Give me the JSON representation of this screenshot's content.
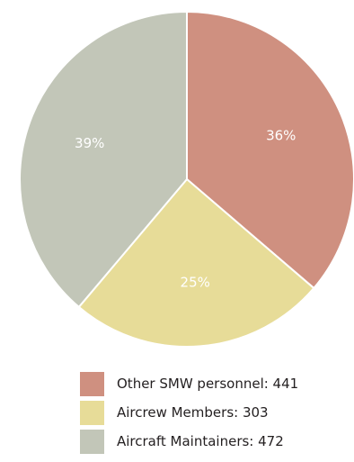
{
  "chart_data": {
    "type": "pie",
    "title": "",
    "slices": [
      {
        "label": "Other SMW personnel",
        "value": 441,
        "percent_label": "36%",
        "color": "#cf9080"
      },
      {
        "label": "Aircrew Members",
        "value": 303,
        "percent_label": "25%",
        "color": "#e7dc98"
      },
      {
        "label": "Aircraft Maintainers",
        "value": 472,
        "percent_label": "39%",
        "color": "#c2c6b8"
      }
    ],
    "legend": {
      "position": "bottom",
      "entries": [
        "Other SMW personnel: 441",
        "Aircrew Members: 303",
        "Aircraft Maintainers: 472"
      ]
    }
  }
}
